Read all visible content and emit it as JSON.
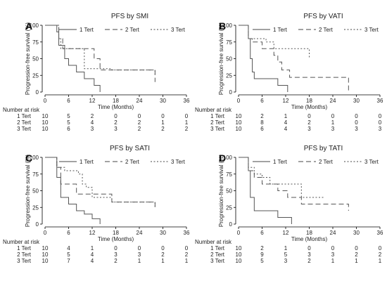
{
  "chart_data": [
    {
      "type": "line",
      "panel_letter": "A",
      "title": "PFS by SMI",
      "xlabel": "Time (Months)",
      "ylabel": "Progression-free survival (%)",
      "xlim": [
        0,
        36
      ],
      "ylim": [
        0,
        100
      ],
      "xticks": [
        "0",
        "6",
        "12",
        "18",
        "24",
        "30",
        "36"
      ],
      "yticks": [
        "0",
        "25",
        "50",
        "75",
        "100"
      ],
      "legend": "top",
      "series": [
        {
          "name": "1 Tert",
          "dash": "solid",
          "x": [
            0,
            3,
            3.5,
            5,
            6,
            8,
            10,
            12.5,
            14
          ],
          "y": [
            100,
            90,
            70,
            50,
            40,
            30,
            20,
            10,
            0
          ]
        },
        {
          "name": "2 Tert",
          "dash": "dash",
          "x": [
            0,
            3.5,
            4.5,
            10,
            12.5,
            14,
            28
          ],
          "y": [
            100,
            80,
            65,
            65,
            50,
            33,
            15
          ]
        },
        {
          "name": "3 Tert",
          "dash": "dot",
          "x": [
            0,
            3.5,
            4,
            7,
            10,
            17,
            28
          ],
          "y": [
            100,
            80,
            65,
            65,
            35,
            33,
            23
          ]
        }
      ],
      "risk_table": {
        "label": "Number at risk",
        "rows": [
          {
            "name": "1 Tert",
            "values": [
              "10",
              "5",
              "2",
              "0",
              "0",
              "0",
              "0"
            ]
          },
          {
            "name": "2 Tert",
            "values": [
              "10",
              "5",
              "4",
              "2",
              "2",
              "1",
              "1"
            ]
          },
          {
            "name": "3 Tert",
            "values": [
              "10",
              "6",
              "3",
              "3",
              "2",
              "2",
              "2"
            ]
          }
        ]
      }
    },
    {
      "type": "line",
      "panel_letter": "B",
      "title": "PFS by VATI",
      "xlabel": "Time (Months)",
      "ylabel": "Progression-free survival (%)",
      "xlim": [
        0,
        36
      ],
      "ylim": [
        0,
        100
      ],
      "xticks": [
        "0",
        "6",
        "12",
        "18",
        "24",
        "30",
        "36"
      ],
      "yticks": [
        "0",
        "25",
        "50",
        "75",
        "100"
      ],
      "legend": "top",
      "series": [
        {
          "name": "1 Tert",
          "dash": "solid",
          "x": [
            0,
            2.5,
            3,
            3.5,
            4,
            10,
            12.5
          ],
          "y": [
            100,
            80,
            50,
            30,
            20,
            10,
            0
          ]
        },
        {
          "name": "2 Tert",
          "dash": "dash",
          "x": [
            0,
            2.5,
            3.5,
            6,
            9,
            10,
            11,
            13,
            28
          ],
          "y": [
            100,
            80,
            75,
            65,
            55,
            45,
            33,
            22,
            0
          ]
        },
        {
          "name": "3 Tert",
          "dash": "dot",
          "x": [
            0,
            2.5,
            7,
            9,
            18
          ],
          "y": [
            100,
            80,
            75,
            65,
            50
          ]
        }
      ],
      "risk_table": {
        "label": "Number at risk",
        "rows": [
          {
            "name": "1 Tert",
            "values": [
              "10",
              "2",
              "1",
              "0",
              "0",
              "0",
              "0"
            ]
          },
          {
            "name": "2 Tert",
            "values": [
              "10",
              "8",
              "4",
              "2",
              "1",
              "0",
              "0"
            ]
          },
          {
            "name": "3 Tert",
            "values": [
              "10",
              "6",
              "4",
              "3",
              "3",
              "3",
              "3"
            ]
          }
        ]
      }
    },
    {
      "type": "line",
      "panel_letter": "C",
      "title": "PFS by SATI",
      "xlabel": "Time (Months)",
      "ylabel": "Progression-free survival (%)",
      "xlim": [
        0,
        36
      ],
      "ylim": [
        0,
        100
      ],
      "xticks": [
        "0",
        "6",
        "12",
        "18",
        "24",
        "30",
        "36"
      ],
      "yticks": [
        "0",
        "25",
        "50",
        "75",
        "100"
      ],
      "legend": "top",
      "series": [
        {
          "name": "1 Tert",
          "dash": "solid",
          "x": [
            0,
            3,
            4,
            6,
            8,
            10,
            12,
            14
          ],
          "y": [
            100,
            70,
            40,
            30,
            20,
            15,
            8,
            0
          ]
        },
        {
          "name": "2 Tert",
          "dash": "dash",
          "x": [
            0,
            3,
            4,
            8,
            14,
            17,
            28
          ],
          "y": [
            100,
            85,
            60,
            45,
            45,
            33,
            25
          ]
        },
        {
          "name": "3 Tert",
          "dash": "dot",
          "x": [
            0,
            3,
            5,
            8.5,
            9.5,
            10.5,
            12,
            17,
            28
          ],
          "y": [
            100,
            85,
            80,
            75,
            60,
            55,
            40,
            33,
            25
          ]
        }
      ],
      "risk_table": {
        "label": "Number at risk",
        "rows": [
          {
            "name": "1 Tert",
            "values": [
              "10",
              "4",
              "1",
              "0",
              "0",
              "0",
              "0"
            ]
          },
          {
            "name": "2 Tert",
            "values": [
              "10",
              "5",
              "4",
              "3",
              "3",
              "2",
              "2"
            ]
          },
          {
            "name": "3 Tert",
            "values": [
              "10",
              "7",
              "4",
              "2",
              "1",
              "1",
              "1"
            ]
          }
        ]
      }
    },
    {
      "type": "line",
      "panel_letter": "D",
      "title": "PFS by TATI",
      "xlabel": "Time (Months)",
      "ylabel": "Progression-free survival (%)",
      "xlim": [
        0,
        36
      ],
      "ylim": [
        0,
        100
      ],
      "xticks": [
        "0",
        "6",
        "12",
        "18",
        "24",
        "30",
        "36"
      ],
      "yticks": [
        "0",
        "25",
        "50",
        "75",
        "100"
      ],
      "legend": "top",
      "series": [
        {
          "name": "1 Tert",
          "dash": "solid",
          "x": [
            0,
            2.5,
            3,
            4,
            10,
            13.5
          ],
          "y": [
            100,
            80,
            40,
            20,
            10,
            0
          ]
        },
        {
          "name": "2 Tert",
          "dash": "dash",
          "x": [
            0,
            2.5,
            4,
            6,
            10,
            12.5,
            16,
            18,
            28
          ],
          "y": [
            100,
            80,
            70,
            60,
            50,
            40,
            30,
            30,
            20
          ]
        },
        {
          "name": "3 Tert",
          "dash": "dot",
          "x": [
            0,
            2.5,
            4,
            6,
            8,
            10,
            16,
            22
          ],
          "y": [
            100,
            85,
            75,
            70,
            60,
            60,
            40,
            40
          ]
        }
      ],
      "risk_table": {
        "label": "Number at risk",
        "rows": [
          {
            "name": "1 Tert",
            "values": [
              "10",
              "2",
              "1",
              "0",
              "0",
              "0",
              "0"
            ]
          },
          {
            "name": "2 Tert",
            "values": [
              "10",
              "9",
              "5",
              "3",
              "3",
              "2",
              "2"
            ]
          },
          {
            "name": "3 Tert",
            "values": [
              "10",
              "5",
              "3",
              "2",
              "1",
              "1",
              "1"
            ]
          }
        ]
      }
    }
  ]
}
